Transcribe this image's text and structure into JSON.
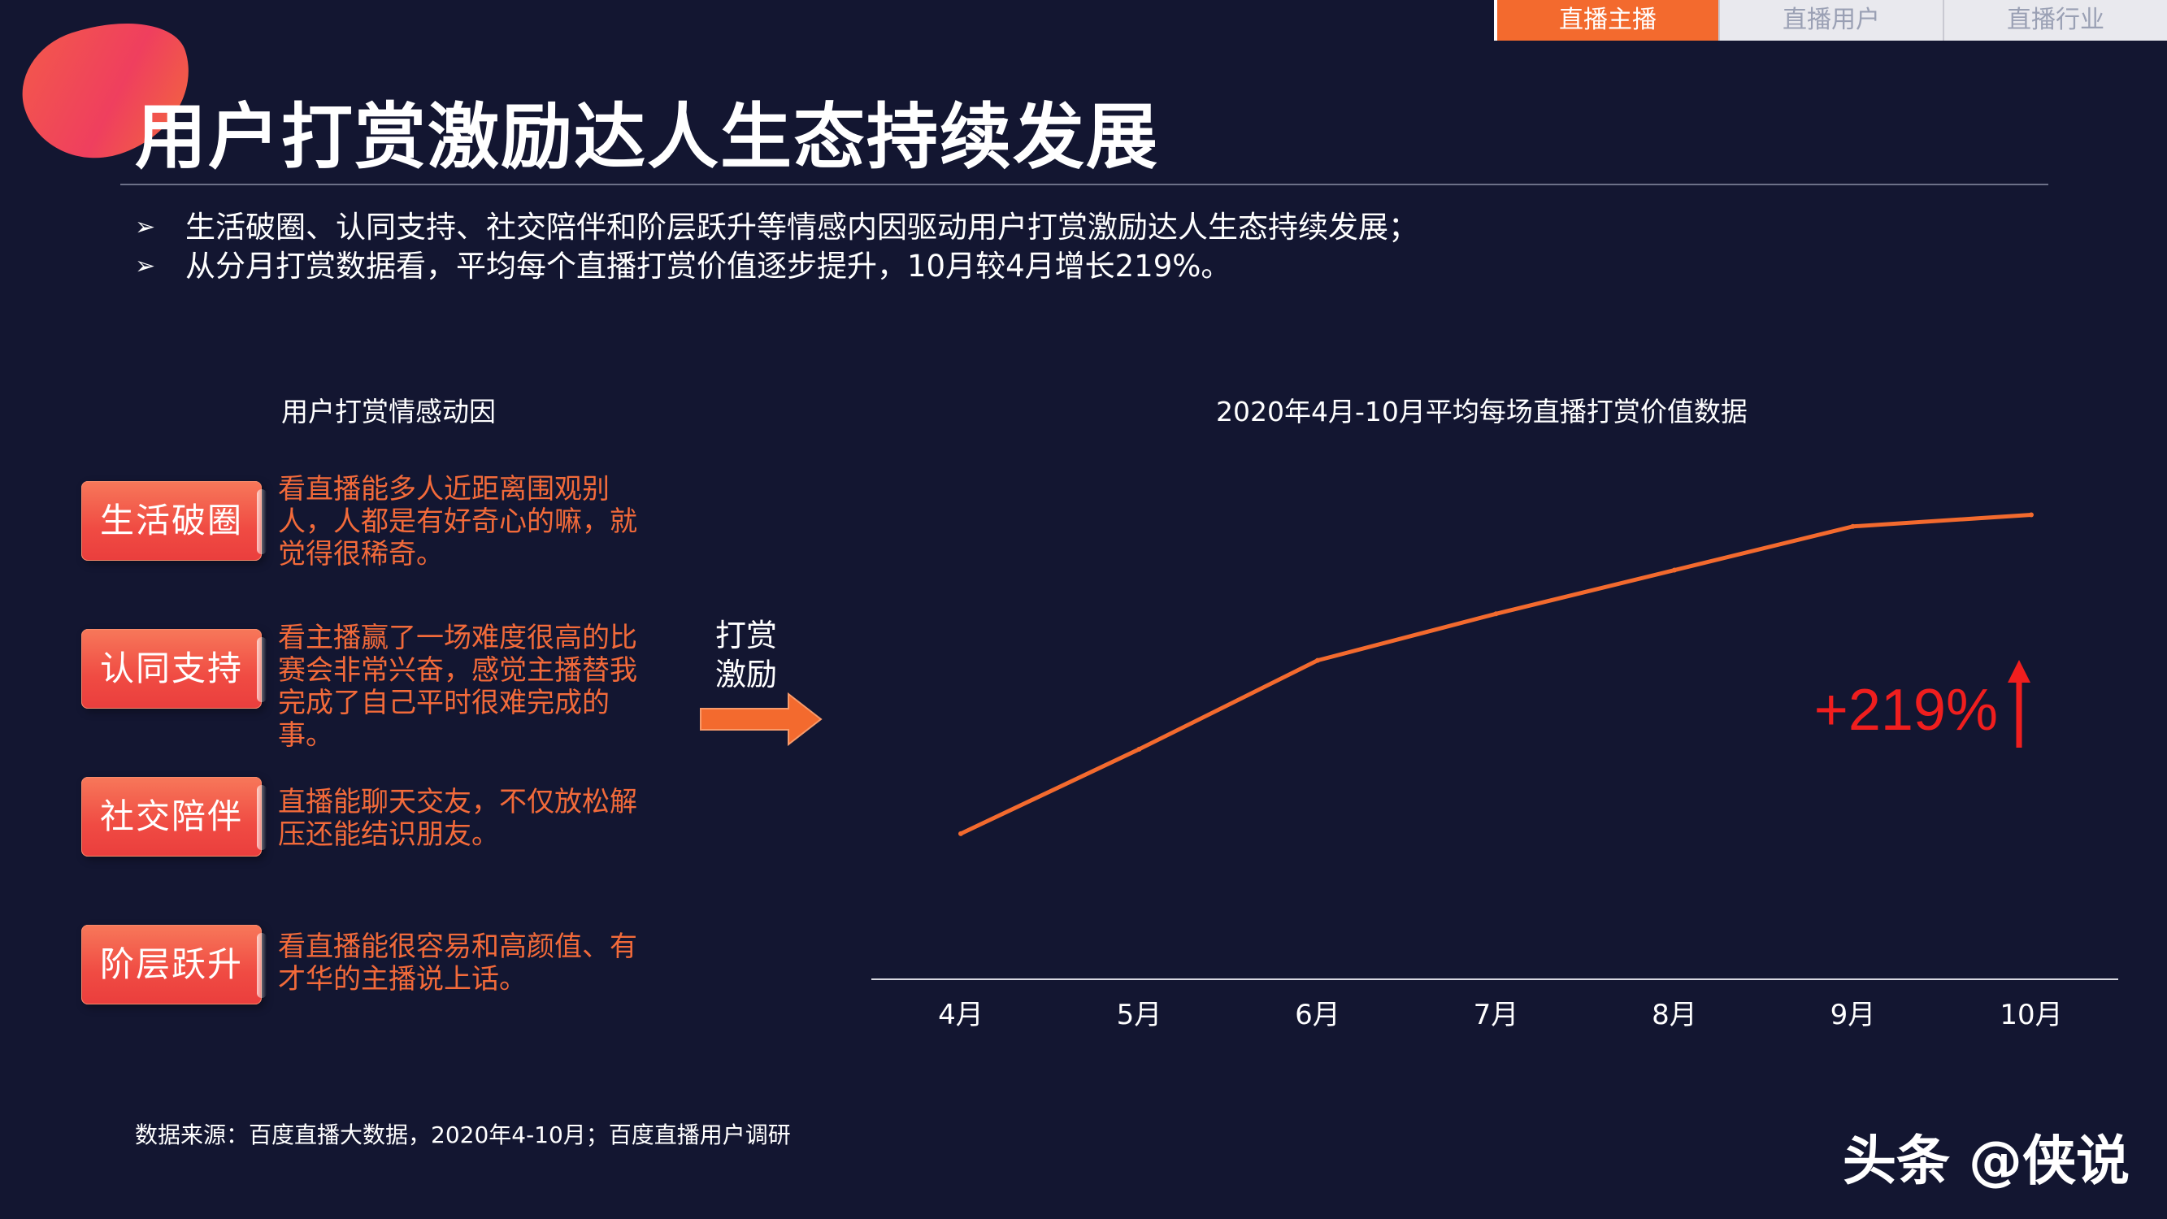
{
  "nav": {
    "tabs": [
      "直播主播",
      "直播用户",
      "直播行业"
    ],
    "active_index": 0
  },
  "page_title": "用户打赏激励达人生态持续发展",
  "bullets": [
    "生活破圈、认同支持、社交陪伴和阶层跃升等情感内因驱动用户打赏激励达人生态持续发展；",
    "从分月打赏数据看，平均每个直播打赏价值逐步提升，10月较4月增长219%。"
  ],
  "bullet_marker": "➢",
  "motives": {
    "title": "用户打赏情感动因",
    "items": [
      {
        "label": "生活破圈",
        "lines": [
          "看直播能多人近距离围观别",
          "人，人都是有好奇心的嘛，就",
          "觉得很稀奇。"
        ]
      },
      {
        "label": "认同支持",
        "lines": [
          "看主播赢了一场难度很高的比",
          "赛会非常兴奋，感觉主播替我",
          "完成了自己平时很难完成的",
          "事。"
        ]
      },
      {
        "label": "社交陪伴",
        "lines": [
          "直播能聊天交友，不仅放松解",
          "压还能结识朋友。"
        ]
      },
      {
        "label": "阶层跃升",
        "lines": [
          "看直播能很容易和高颜值、有",
          "才华的主播说上话。"
        ]
      }
    ]
  },
  "arrow_label": [
    "打赏",
    "激励"
  ],
  "colors": {
    "accent": "#f36a2e",
    "line": "#f36a2e",
    "growth": "#f01e1e",
    "background": "#131631"
  },
  "chart_data": {
    "type": "line",
    "title": "2020年4月-10月平均每场直播打赏价值数据",
    "categories": [
      "4月",
      "5月",
      "6月",
      "7月",
      "8月",
      "9月",
      "10月"
    ],
    "series": [
      {
        "values": [
          1.0,
          1.58,
          2.19,
          2.51,
          2.81,
          3.11,
          3.19
        ]
      }
    ],
    "ylim": [
      0,
      3.6
    ],
    "y_axis_shown": false,
    "grid": false,
    "annotation": "+219%"
  },
  "source": "数据来源：百度直播大数据，2020年4-10月；百度直播用户调研",
  "watermark": "头条 @侠说"
}
